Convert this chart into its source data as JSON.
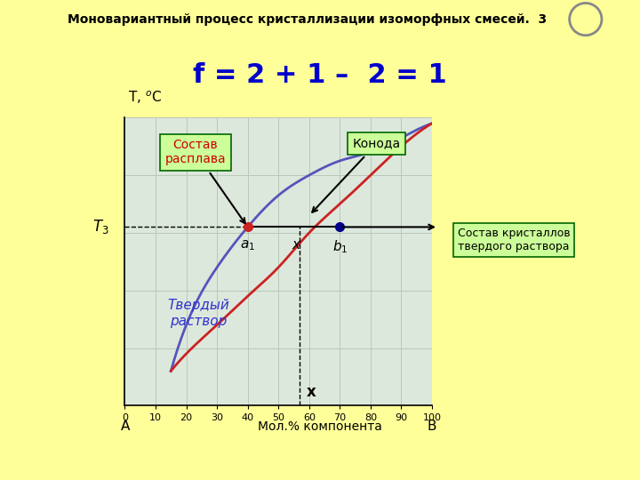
{
  "title": "Моновариантный процесс кристаллизации изоморфных смесей.  3",
  "formula": "f = 2 + 1 –  2 = 1",
  "bg_color": "#FFFF99",
  "plot_bg_color": "#dde8dd",
  "grid_color": "#b8c8b8",
  "liquidus_color": "#5555bb",
  "solidus_color": "#cc2222",
  "x_ticks": [
    0,
    10,
    20,
    30,
    40,
    50,
    60,
    70,
    80,
    90,
    100
  ],
  "xmin": 0,
  "xmax": 100,
  "ymin": 0,
  "ymax": 100,
  "liquidus_x": [
    15,
    20,
    30,
    40,
    50,
    60,
    70,
    80,
    90,
    100
  ],
  "liquidus_y": [
    12,
    28,
    48,
    62,
    73,
    80,
    85,
    88,
    93,
    98
  ],
  "solidus_x": [
    15,
    20,
    30,
    40,
    50,
    60,
    70,
    80,
    90,
    100
  ],
  "solidus_y": [
    12,
    18,
    28,
    38,
    48,
    60,
    70,
    80,
    90,
    98
  ],
  "T3_y": 62,
  "a1_x": 40,
  "b1_x": 70,
  "x_mark": 57,
  "label_sostav_rasplava": "Состав\nрасплава",
  "label_konoda": "Конода",
  "label_tverdyi": "Твердый\nраствор",
  "label_sostav_kristallov": "Состав кристаллов\nтвердого раствора",
  "dot_a1_color": "#cc2222",
  "dot_b1_color": "#000088",
  "box_facecolor": "#ccff99",
  "box_edgecolor": "#006600"
}
